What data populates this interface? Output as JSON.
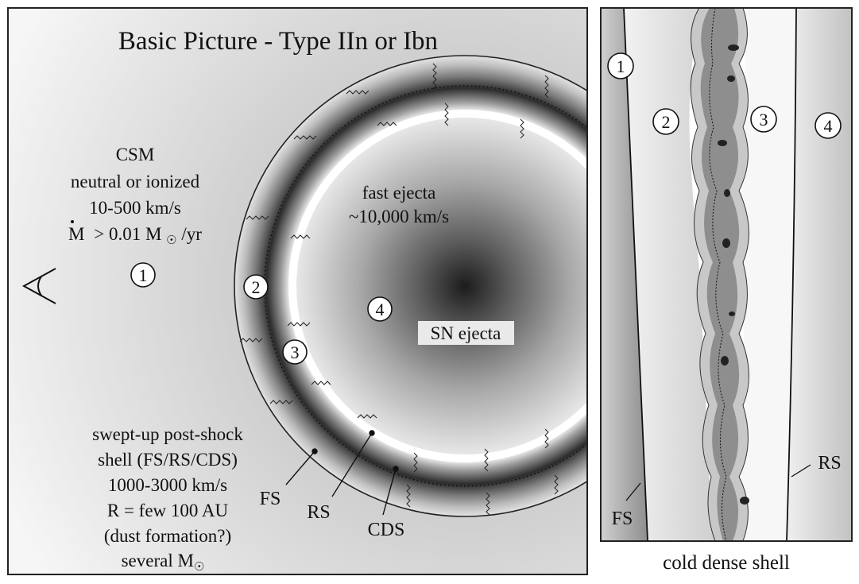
{
  "left_panel": {
    "title": "Basic Picture - Type IIn or Ibn",
    "csm": {
      "label": "CSM",
      "state": "neutral or ionized",
      "speed": "10-500 km/s",
      "mass_loss_symbol": "M",
      "mass_loss_value": "> 0.01 M",
      "mass_loss_unit": "/yr",
      "sun_symbol": "☉"
    },
    "fast_ejecta": {
      "label": "fast ejecta",
      "speed": "~10,000 km/s"
    },
    "sn_ejecta_label": "SN ejecta",
    "region_numbers": [
      "1",
      "2",
      "3",
      "4"
    ],
    "shell_description": {
      "line1": "swept-up post-shock",
      "line2": "shell (FS/RS/CDS)",
      "line3": "1000-3000 km/s",
      "line4": "R = few 100 AU",
      "line5": "(dust formation?)",
      "line6": "several M"
    },
    "pointer_labels": {
      "fs": "FS",
      "rs": "RS",
      "cds": "CDS"
    },
    "observer_icon": "eye-observer-icon"
  },
  "right_panel": {
    "region_numbers": [
      "1",
      "2",
      "3",
      "4"
    ],
    "fs_label": "FS",
    "rs_label": "RS",
    "caption": "cold dense shell"
  }
}
